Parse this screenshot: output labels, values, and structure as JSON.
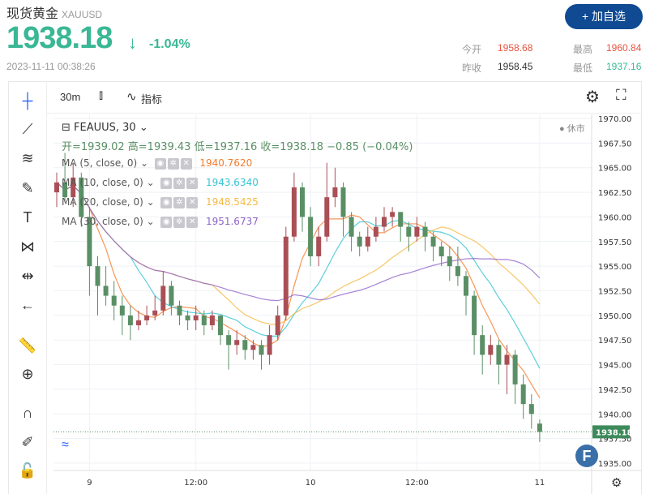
{
  "header": {
    "title": "现货黄金",
    "symbol": "XAUUSD",
    "price": "1938.18",
    "change_pct": "-1.04%",
    "timestamp": "2023-11-11 00:38:26",
    "add_button": "+ 加自选",
    "stats": [
      {
        "label": "今开",
        "value": "1958.68",
        "color": "#e8533f"
      },
      {
        "label": "最高",
        "value": "1960.84",
        "color": "#e8533f"
      },
      {
        "label": "昨收",
        "value": "1958.45",
        "color": "#333333"
      },
      {
        "label": "最低",
        "value": "1937.16",
        "color": "#3ab795"
      }
    ]
  },
  "toolbar": {
    "interval": "30m",
    "indicators": "指标"
  },
  "legend": {
    "symbol": "FEAUUS, 30",
    "ohlc": "开=1939.02  高=1939.43  低=1937.16  收=1938.18  −0.85 (−0.04%)",
    "status": "● 休市",
    "ma": [
      {
        "label": "MA (5, close, 0)",
        "value": "1940.7620",
        "color": "#f57c2c",
        "period": 5
      },
      {
        "label": "MA (10, close, 0)",
        "value": "1943.6340",
        "color": "#36c3d3",
        "period": 10
      },
      {
        "label": "MA (20, close, 0)",
        "value": "1948.5425",
        "color": "#f5b942",
        "period": 20
      },
      {
        "label": "MA (30, close, 0)",
        "value": "1951.6737",
        "color": "#8e63c9",
        "period": 30
      }
    ]
  },
  "chart_data": {
    "type": "candlestick",
    "ylim": [
      1935,
      1970
    ],
    "yticks": [
      "1970.00",
      "1967.50",
      "1965.00",
      "1962.50",
      "1960.00",
      "1957.50",
      "1955.00",
      "1952.50",
      "1950.00",
      "1947.50",
      "1945.00",
      "1942.50",
      "1940.00",
      "1937.50",
      "1935.00"
    ],
    "xticks": [
      {
        "label": "9",
        "bar": 4
      },
      {
        "label": "12:00",
        "bar": 17
      },
      {
        "label": "10",
        "bar": 31
      },
      {
        "label": "12:00",
        "bar": 44
      },
      {
        "label": "11",
        "bar": 59
      }
    ],
    "last_price": "1938.18",
    "up_color": "#a94f55",
    "down_color": "#5a8f65",
    "bars": [
      [
        1962.5,
        1964.5,
        1961,
        1963.5
      ],
      [
        1963.5,
        1966.5,
        1961.5,
        1962
      ],
      [
        1962,
        1965.5,
        1961,
        1964
      ],
      [
        1964,
        1964.5,
        1959,
        1960
      ],
      [
        1960,
        1961,
        1952,
        1955
      ],
      [
        1955,
        1956,
        1950,
        1953
      ],
      [
        1953,
        1955,
        1951,
        1952
      ],
      [
        1952,
        1953.5,
        1949.5,
        1951
      ],
      [
        1951,
        1952,
        1948,
        1950
      ],
      [
        1950,
        1951,
        1947.5,
        1949
      ],
      [
        1949,
        1950.5,
        1948.5,
        1949.5
      ],
      [
        1949.5,
        1951,
        1949,
        1950
      ],
      [
        1950,
        1952,
        1949.5,
        1950.5
      ],
      [
        1950.5,
        1954.5,
        1950,
        1953
      ],
      [
        1953,
        1953.5,
        1950,
        1951
      ],
      [
        1951,
        1951.5,
        1949,
        1950
      ],
      [
        1950,
        1950.5,
        1948.5,
        1949.5
      ],
      [
        1949.5,
        1951,
        1948.5,
        1950
      ],
      [
        1950,
        1950.5,
        1948,
        1949
      ],
      [
        1949,
        1950.5,
        1948.5,
        1950
      ],
      [
        1950,
        1950,
        1947,
        1948
      ],
      [
        1948,
        1948.5,
        1944.5,
        1947
      ],
      [
        1947,
        1948.5,
        1946,
        1947.5
      ],
      [
        1947.5,
        1948,
        1945.5,
        1946.5
      ],
      [
        1946.5,
        1947.5,
        1945.5,
        1947
      ],
      [
        1947,
        1947.5,
        1944.5,
        1946
      ],
      [
        1946,
        1949,
        1945,
        1948
      ],
      [
        1948,
        1951,
        1947.5,
        1950
      ],
      [
        1950,
        1959,
        1949.5,
        1958
      ],
      [
        1958,
        1964.5,
        1957.5,
        1963
      ],
      [
        1963,
        1963.5,
        1958.5,
        1960
      ],
      [
        1960,
        1961,
        1955,
        1956
      ],
      [
        1956,
        1959,
        1955,
        1958
      ],
      [
        1958,
        1965.5,
        1957.5,
        1962
      ],
      [
        1962,
        1965,
        1961,
        1963
      ],
      [
        1963,
        1963.5,
        1958,
        1960
      ],
      [
        1960,
        1960.5,
        1956.5,
        1958
      ],
      [
        1958,
        1958.5,
        1956,
        1957
      ],
      [
        1957,
        1959,
        1956.5,
        1958
      ],
      [
        1958,
        1960,
        1957.5,
        1959
      ],
      [
        1959,
        1961,
        1958.5,
        1960
      ],
      [
        1960,
        1961,
        1959,
        1960.5
      ],
      [
        1960.5,
        1960.5,
        1957.5,
        1959
      ],
      [
        1959,
        1959.5,
        1956.5,
        1958
      ],
      [
        1958,
        1960,
        1957.5,
        1959
      ],
      [
        1959,
        1959.5,
        1956.5,
        1958
      ],
      [
        1958,
        1958.5,
        1955.5,
        1957
      ],
      [
        1957,
        1957.5,
        1955,
        1956
      ],
      [
        1956,
        1957,
        1953.5,
        1955
      ],
      [
        1955,
        1957,
        1953,
        1954
      ],
      [
        1954,
        1954.5,
        1950,
        1952
      ],
      [
        1952,
        1952.5,
        1946,
        1948
      ],
      [
        1948,
        1949,
        1944,
        1946
      ],
      [
        1946,
        1948,
        1945,
        1947
      ],
      [
        1947,
        1947.5,
        1943,
        1945
      ],
      [
        1945,
        1947,
        1942,
        1946
      ],
      [
        1946,
        1946.5,
        1941,
        1943
      ],
      [
        1943,
        1944,
        1939.5,
        1941
      ],
      [
        1941,
        1942,
        1938.5,
        1940
      ],
      [
        1939.02,
        1939.43,
        1937.16,
        1938.18
      ]
    ]
  }
}
